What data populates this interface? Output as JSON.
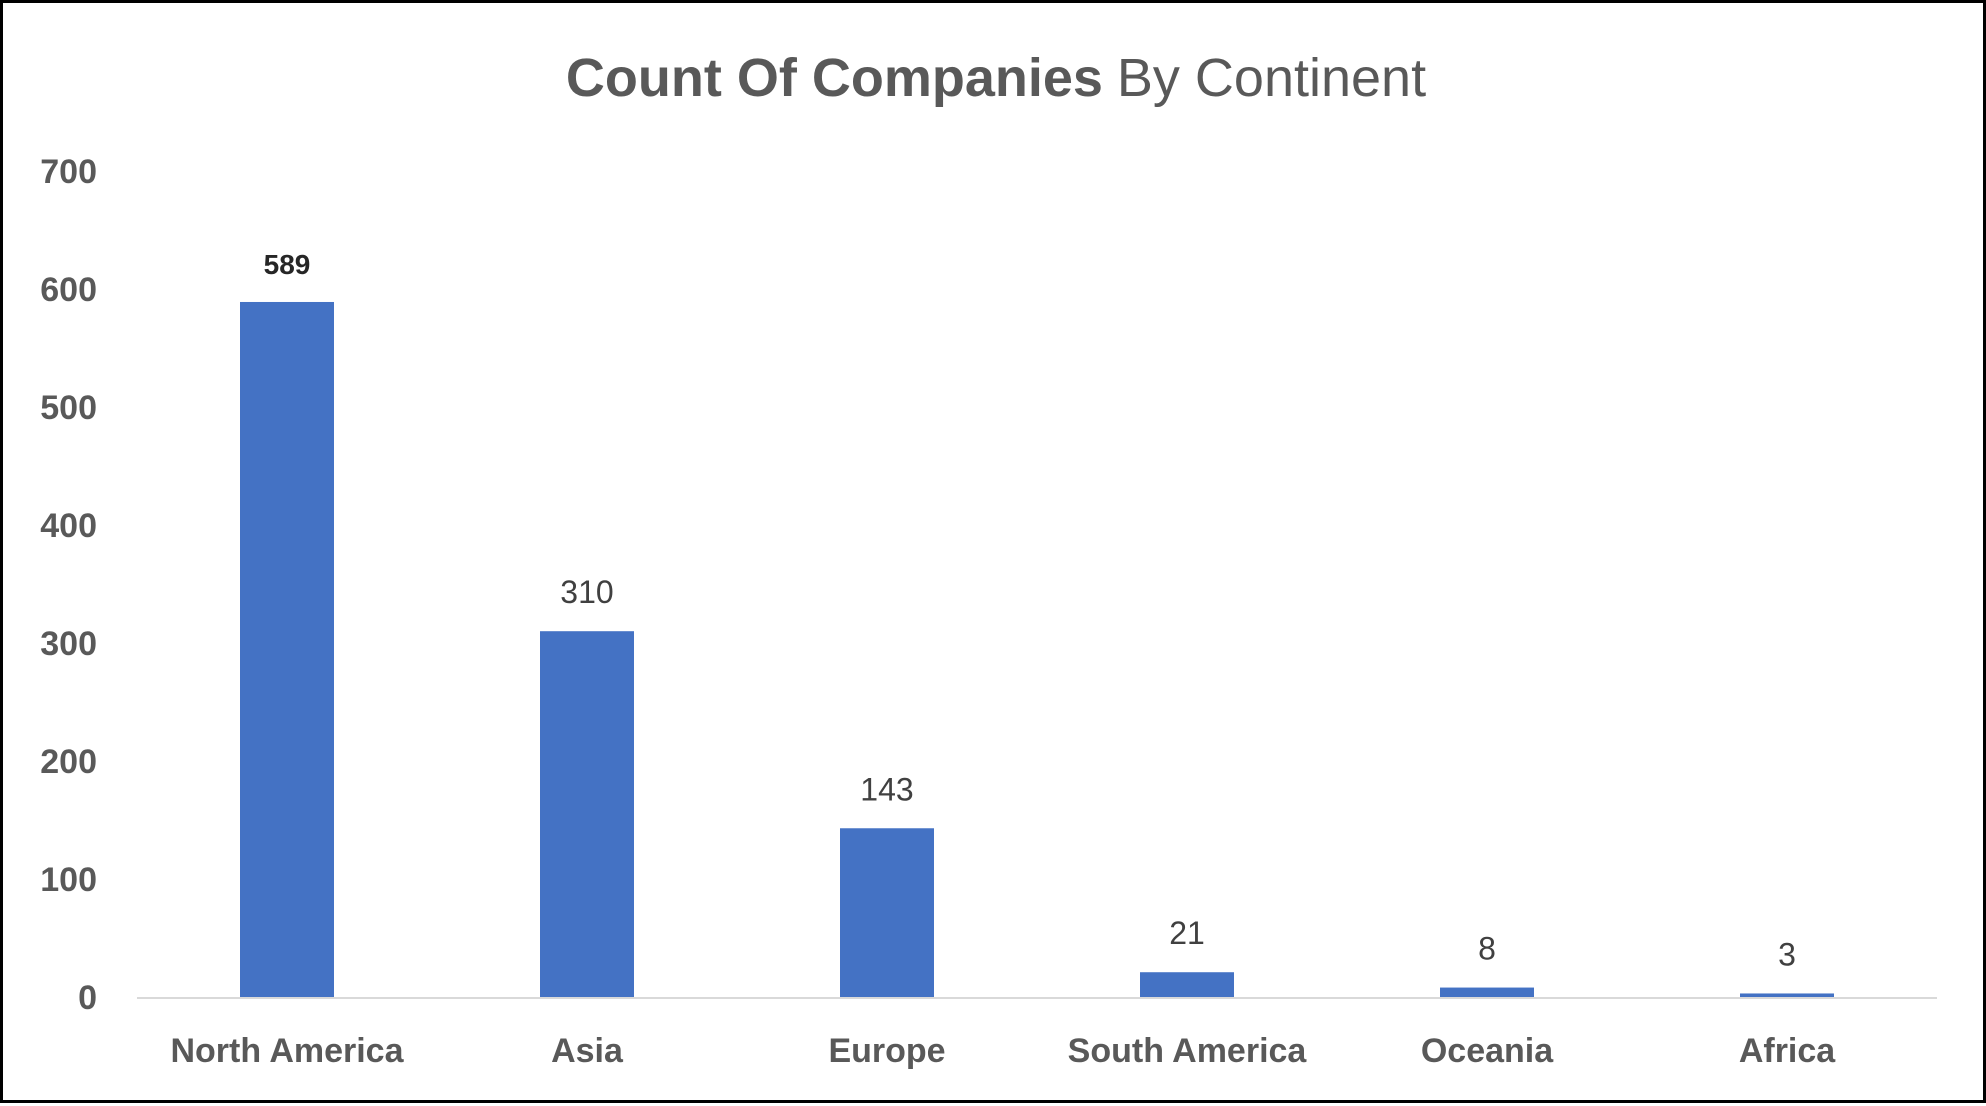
{
  "chart_data": {
    "type": "bar",
    "title_bold": "Count Of Companies",
    "title_rest": "By Continent",
    "categories": [
      "North America",
      "Asia",
      "Europe",
      "South America",
      "Oceania",
      "Africa"
    ],
    "values": [
      589,
      310,
      143,
      21,
      8,
      3
    ],
    "data_labels": [
      "589",
      "310",
      "143",
      "21",
      "8",
      "3"
    ],
    "y_ticks": [
      "0",
      "100",
      "200",
      "300",
      "400",
      "500",
      "600",
      "700"
    ],
    "ylim": [
      0,
      700
    ],
    "xlabel": "",
    "ylabel": "",
    "grid": false,
    "legend": "none",
    "colors": {
      "bar": "#4472C4",
      "text": "#595959",
      "axis": "#D9D9D9",
      "label_first": "#262626",
      "label": "#404040"
    }
  }
}
